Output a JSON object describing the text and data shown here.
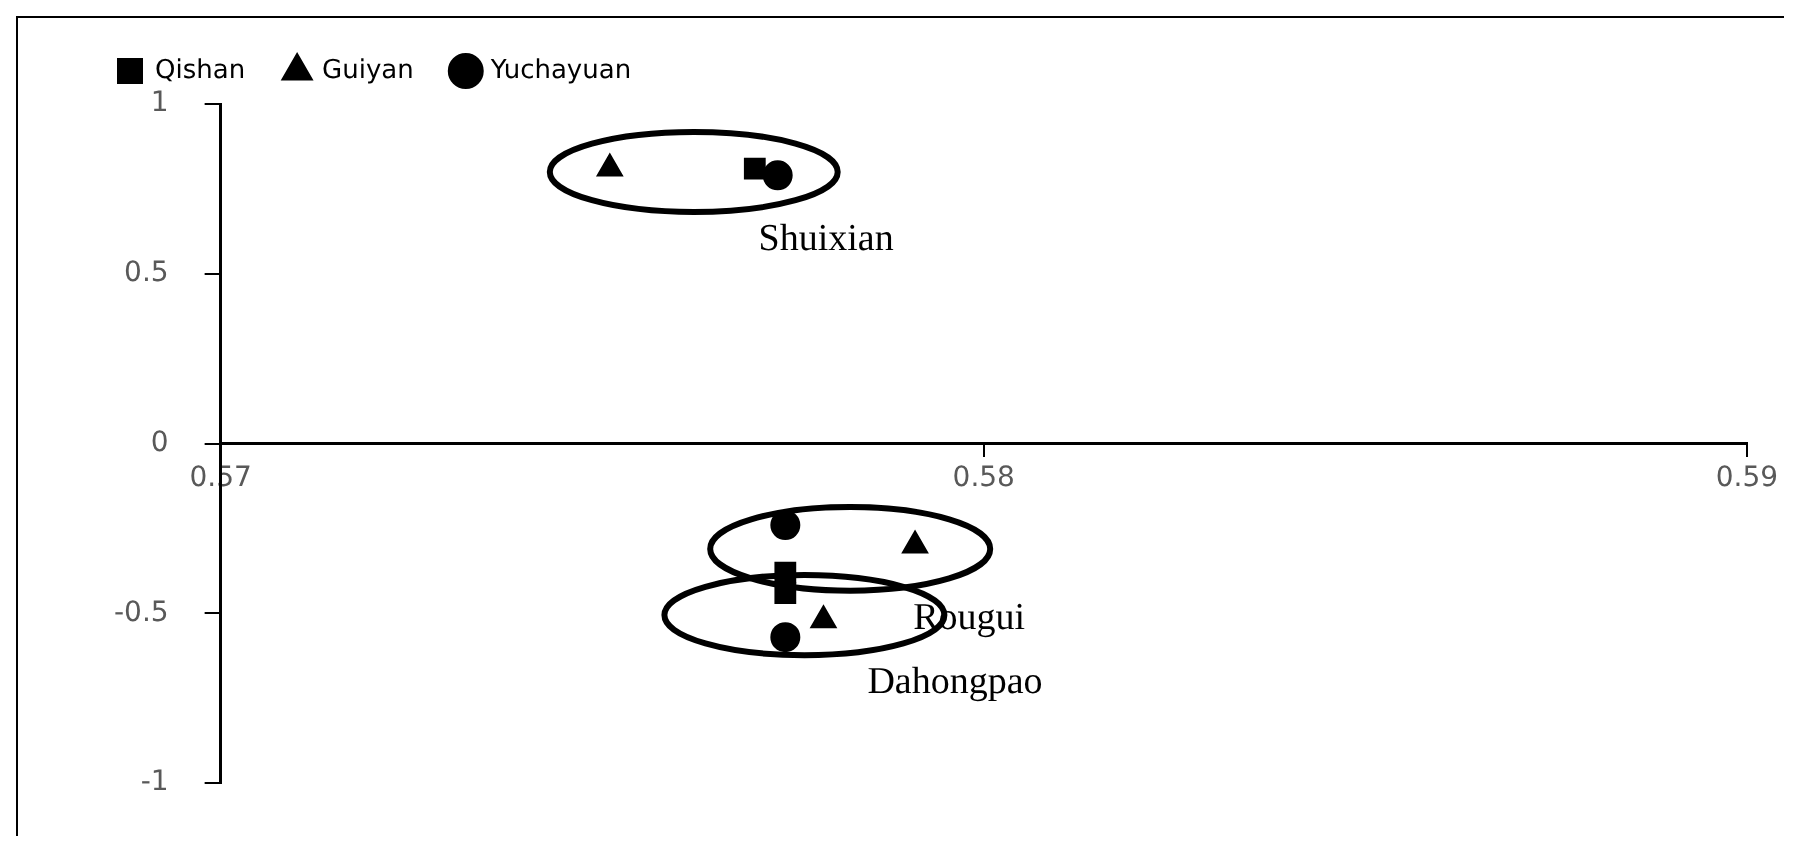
{
  "chart_data": {
    "type": "scatter",
    "legend": "top",
    "grid": false,
    "xlim": [
      0.57,
      0.59
    ],
    "xticks": [
      0.57,
      0.58,
      0.59
    ],
    "ylim": [
      -1,
      1
    ],
    "yticks": [
      -1,
      -0.5,
      0,
      0.5,
      1
    ],
    "series": [
      {
        "name": "Qishan",
        "color": "#000000",
        "marker": "square",
        "x": [
          0.577,
          0.5774,
          0.5774
        ],
        "values": [
          0.81,
          -0.38,
          -0.44
        ]
      },
      {
        "name": "Guiyan",
        "color": "#000000",
        "marker": "triangle",
        "x": [
          0.5751,
          0.5791,
          0.5779
        ],
        "values": [
          0.81,
          -0.3,
          -0.52
        ]
      },
      {
        "name": "Yuchayuan",
        "color": "#000000",
        "marker": "circle",
        "x": [
          0.5773,
          0.5774,
          0.5774
        ],
        "values": [
          0.79,
          -0.24,
          -0.57
        ]
      }
    ],
    "annotations": [
      "Shuixian",
      "Rougui",
      "Dahongpao"
    ]
  }
}
